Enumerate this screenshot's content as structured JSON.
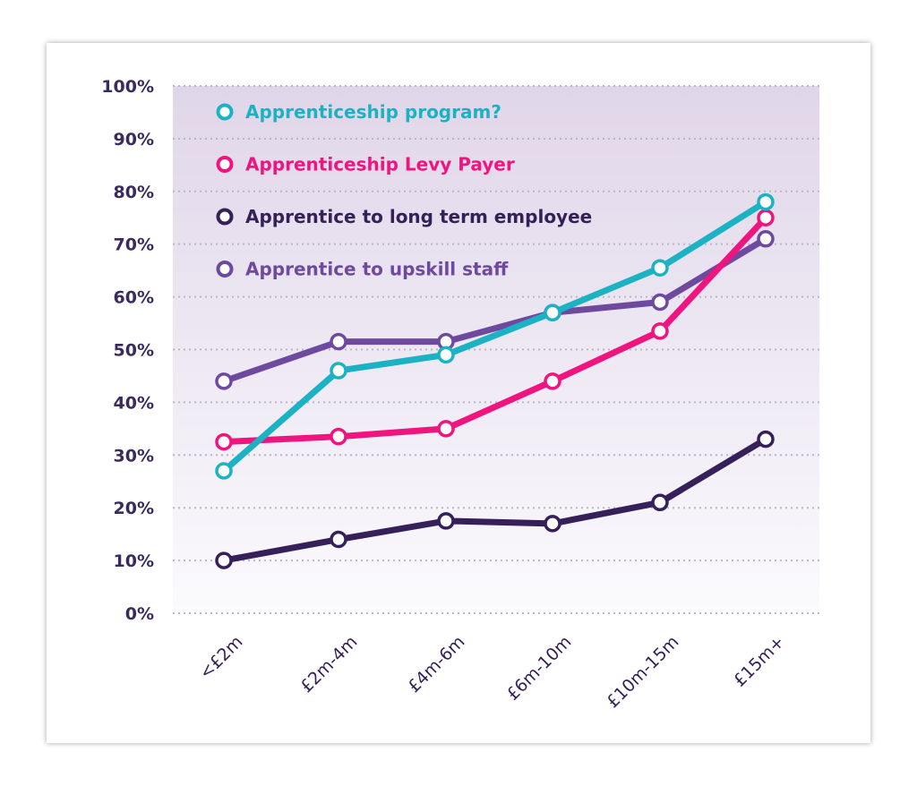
{
  "chart_data": {
    "type": "line",
    "title": "",
    "xlabel": "",
    "ylabel": "",
    "categories": [
      "<£2m",
      "£2m-4m",
      "£4m-6m",
      "£6m-10m",
      "£10m-15m",
      "£15m+"
    ],
    "ylim": [
      0,
      100
    ],
    "yticks": [
      "0%",
      "10%",
      "20%",
      "30%",
      "40%",
      "50%",
      "60%",
      "70%",
      "80%",
      "90%",
      "100%"
    ],
    "grid": "horizontal dotted",
    "legend_placement": "top-left (inside plot)",
    "series": [
      {
        "name": "Apprenticeship program?",
        "color": "#1bb3c4",
        "values": [
          27,
          46,
          49,
          57,
          65.5,
          78
        ]
      },
      {
        "name": "Apprenticeship Levy Payer",
        "color": "#f0147f",
        "values": [
          32.5,
          33.5,
          35,
          44,
          53.5,
          75
        ]
      },
      {
        "name": "Apprentice to long term employee",
        "color": "#35205a",
        "values": [
          10,
          14,
          17.5,
          17,
          21,
          33
        ]
      },
      {
        "name": "Apprentice to upskill staff",
        "color": "#6e4a9e",
        "values": [
          44,
          51.5,
          51.5,
          57,
          59,
          71
        ]
      }
    ],
    "draw_order": [
      3,
      1,
      0,
      2
    ]
  }
}
